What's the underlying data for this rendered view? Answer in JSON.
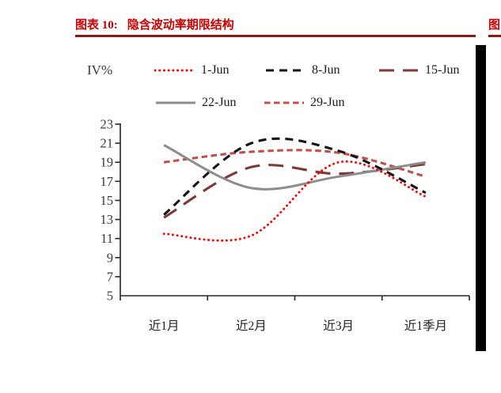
{
  "header": {
    "figure_label": "图表 10:",
    "title": "隐含波动率期限结构",
    "next_figure_partial": "图",
    "title_color": "#cc0000",
    "underline_color": "#8b1a12"
  },
  "chart_data": {
    "type": "line",
    "title": "隐含波动率期限结构",
    "ylabel": "IV%",
    "xlabel": "",
    "categories": [
      "近1月",
      "近2月",
      "近3月",
      "近1季月"
    ],
    "ylim": [
      5,
      23
    ],
    "ytick_step": 2,
    "grid": false,
    "legend_position": "top",
    "line_smoothing": true,
    "axis_color": "#262626",
    "tick_label_color": "#3a3a3a",
    "series": [
      {
        "name": "1-Jun",
        "style": "dotted",
        "color": "#fe0000",
        "values": [
          11.5,
          11.3,
          19.0,
          15.4
        ]
      },
      {
        "name": "8-Jun",
        "style": "dashed",
        "color": "#151515",
        "values": [
          13.5,
          21.0,
          20.2,
          15.8
        ]
      },
      {
        "name": "15-Jun",
        "style": "long-dash",
        "color": "#7b3937",
        "values": [
          13.2,
          18.5,
          17.8,
          18.8
        ]
      },
      {
        "name": "22-Jun",
        "style": "solid",
        "color": "#8d8d8d",
        "values": [
          20.8,
          16.3,
          17.5,
          19.0
        ]
      },
      {
        "name": "29-Jun",
        "style": "short-dash",
        "color": "#c0504d",
        "values": [
          19.0,
          20.1,
          20.0,
          17.5
        ]
      }
    ]
  }
}
